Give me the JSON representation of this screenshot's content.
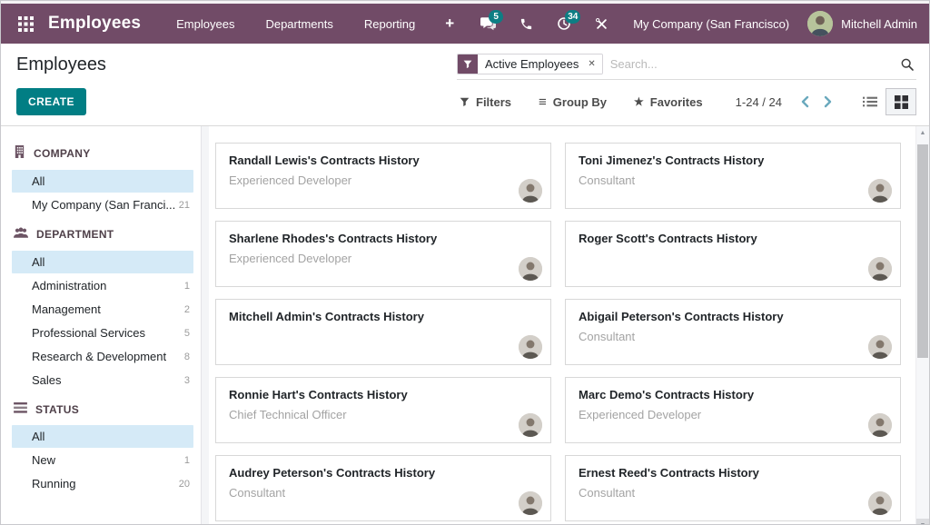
{
  "topbar": {
    "app_name": "Employees",
    "menu": [
      "Employees",
      "Departments",
      "Reporting"
    ],
    "messages_badge": "5",
    "activities_badge": "34",
    "company": "My Company (San Francisco)",
    "user": "Mitchell Admin"
  },
  "control_panel": {
    "title": "Employees",
    "create_label": "CREATE",
    "search": {
      "facet_label": "Active Employees",
      "placeholder": "Search..."
    },
    "filters_label": "Filters",
    "group_by_label": "Group By",
    "favorites_label": "Favorites",
    "pager_range": "1-24 / 24"
  },
  "icons": {
    "plus": "+",
    "facet_close": "✕",
    "group_by_glyph": "≡",
    "star_glyph": "★",
    "scroll_up": "▲",
    "scroll_down": "▼"
  },
  "sidebar": {
    "sections": [
      {
        "title": "COMPANY",
        "icon": "building-icon",
        "items": [
          {
            "label": "All",
            "count": "",
            "selected": true
          },
          {
            "label": "My Company (San Franci...",
            "count": "21",
            "selected": false
          }
        ]
      },
      {
        "title": "DEPARTMENT",
        "icon": "users-icon",
        "items": [
          {
            "label": "All",
            "count": "",
            "selected": true
          },
          {
            "label": "Administration",
            "count": "1",
            "selected": false
          },
          {
            "label": "Management",
            "count": "2",
            "selected": false
          },
          {
            "label": "Professional Services",
            "count": "5",
            "selected": false
          },
          {
            "label": "Research & Development",
            "count": "8",
            "selected": false
          },
          {
            "label": "Sales",
            "count": "3",
            "selected": false
          }
        ]
      },
      {
        "title": "STATUS",
        "icon": "status-icon",
        "items": [
          {
            "label": "All",
            "count": "",
            "selected": true
          },
          {
            "label": "New",
            "count": "1",
            "selected": false
          },
          {
            "label": "Running",
            "count": "20",
            "selected": false
          }
        ]
      }
    ]
  },
  "cards": [
    {
      "title": "Randall Lewis's Contracts History",
      "subtitle": "Experienced Developer"
    },
    {
      "title": "Toni Jimenez's Contracts History",
      "subtitle": "Consultant"
    },
    {
      "title": "Sharlene Rhodes's Contracts History",
      "subtitle": "Experienced Developer"
    },
    {
      "title": "Roger Scott's Contracts History",
      "subtitle": ""
    },
    {
      "title": "Mitchell Admin's Contracts History",
      "subtitle": ""
    },
    {
      "title": "Abigail Peterson's Contracts History",
      "subtitle": "Consultant"
    },
    {
      "title": "Ronnie Hart's Contracts History",
      "subtitle": "Chief Technical Officer"
    },
    {
      "title": "Marc Demo's Contracts History",
      "subtitle": "Experienced Developer"
    },
    {
      "title": "Audrey Peterson's Contracts History",
      "subtitle": "Consultant"
    },
    {
      "title": "Ernest Reed's Contracts History",
      "subtitle": "Consultant"
    }
  ],
  "colors": {
    "topbar_bg": "#714B67",
    "accent_teal": "#017e84",
    "badge_bg": "#0d7e84",
    "selected_item_bg": "#d5eaf7",
    "pager_chevron": "#6aa9bd"
  }
}
